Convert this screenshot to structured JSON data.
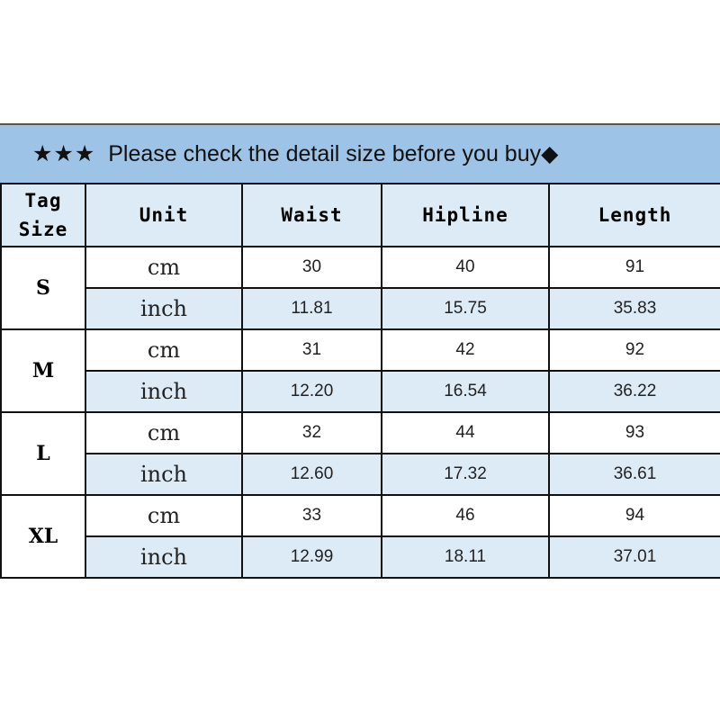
{
  "banner": {
    "stars": "★★★",
    "text": "Please check the detail size before you buy◆"
  },
  "headers": {
    "tag_size_1": "Tag",
    "tag_size_2": "Size",
    "unit": "Unit",
    "waist": "Waist",
    "hipline": "Hipline",
    "length": "Length"
  },
  "colors": {
    "banner": "#9dc3e6",
    "header_bg": "#ddebf7",
    "inch_row_bg": "#ddebf7"
  },
  "rows": [
    {
      "size": "S",
      "cm": {
        "unit": "cm",
        "waist": "30",
        "hipline": "40",
        "length": "91"
      },
      "inch": {
        "unit": "inch",
        "waist": "11.81",
        "hipline": "15.75",
        "length": "35.83"
      }
    },
    {
      "size": "M",
      "cm": {
        "unit": "cm",
        "waist": "31",
        "hipline": "42",
        "length": "92"
      },
      "inch": {
        "unit": "inch",
        "waist": "12.20",
        "hipline": "16.54",
        "length": "36.22"
      }
    },
    {
      "size": "L",
      "cm": {
        "unit": "cm",
        "waist": "32",
        "hipline": "44",
        "length": "93"
      },
      "inch": {
        "unit": "inch",
        "waist": "12.60",
        "hipline": "17.32",
        "length": "36.61"
      }
    },
    {
      "size": "XL",
      "cm": {
        "unit": "cm",
        "waist": "33",
        "hipline": "46",
        "length": "94"
      },
      "inch": {
        "unit": "inch",
        "waist": "12.99",
        "hipline": "18.11",
        "length": "37.01"
      }
    }
  ]
}
